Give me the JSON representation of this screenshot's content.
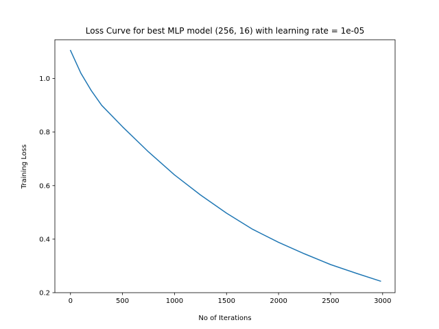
{
  "chart_data": {
    "type": "line",
    "title": "Loss Curve for best MLP model (256, 16) with learning rate = 1e-05",
    "xlabel": "No of Iterations",
    "ylabel": "Training Loss",
    "xlim": [
      -150,
      3120
    ],
    "ylim": [
      0.2,
      1.145
    ],
    "xticks": [
      0,
      500,
      1000,
      1500,
      2000,
      2500,
      3000
    ],
    "xtick_labels": [
      "0",
      "500",
      "1000",
      "1500",
      "2000",
      "2500",
      "3000"
    ],
    "yticks": [
      0.2,
      0.4,
      0.6,
      0.8,
      1.0
    ],
    "ytick_labels": [
      "0.2",
      "0.4",
      "0.6",
      "0.8",
      "1.0"
    ],
    "grid": false,
    "legend": "none",
    "series": [
      {
        "color": "#1f77b4",
        "x": [
          0,
          100,
          200,
          300,
          500,
          750,
          1000,
          1250,
          1500,
          1750,
          2000,
          2250,
          2500,
          2750,
          2980
        ],
        "y": [
          1.105,
          1.02,
          0.955,
          0.9,
          0.82,
          0.726,
          0.64,
          0.565,
          0.497,
          0.437,
          0.388,
          0.345,
          0.305,
          0.272,
          0.243
        ]
      }
    ]
  }
}
